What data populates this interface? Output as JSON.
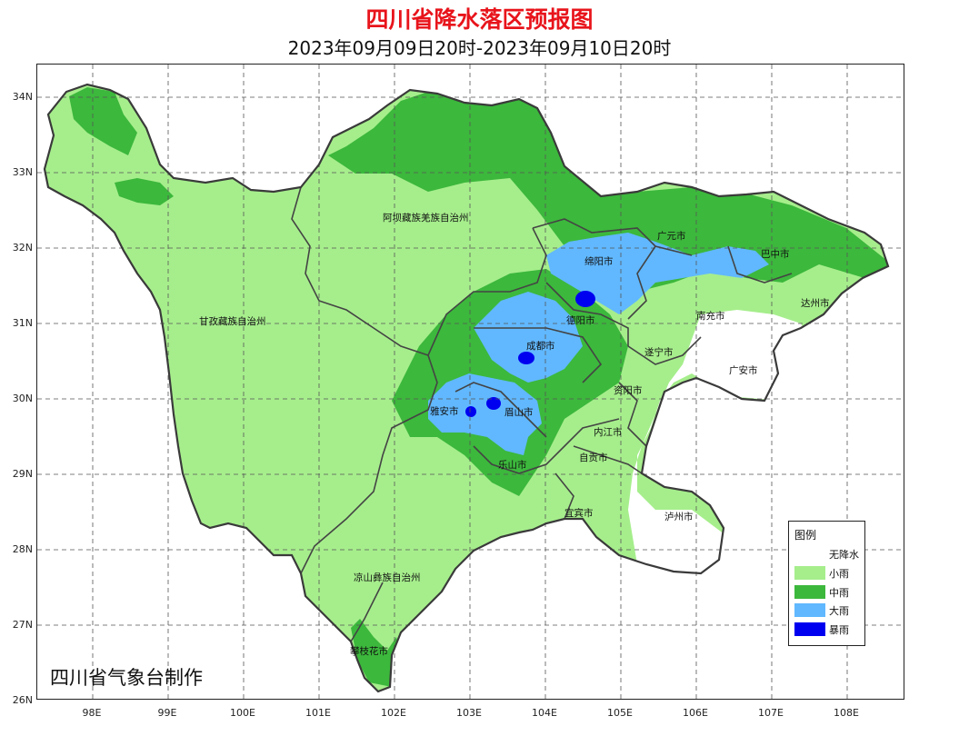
{
  "header": {
    "title": "四川省降水落区预报图",
    "subtitle": "2023年09月09日20时-2023年09月10日20时"
  },
  "axes": {
    "lat_labels": [
      "34N",
      "33N",
      "32N",
      "31N",
      "30N",
      "29N",
      "28N",
      "27N",
      "26N"
    ],
    "lon_labels": [
      "98E",
      "99E",
      "100E",
      "101E",
      "102E",
      "103E",
      "104E",
      "105E",
      "106E",
      "107E",
      "108E"
    ]
  },
  "regions": {
    "aba": "阿坝藏族羌族自治州",
    "ganzi": "甘孜藏族自治州",
    "liangshan": "凉山彝族自治州",
    "guangyuan": "广元市",
    "bazhong": "巴中市",
    "mianyang": "绵阳市",
    "dazhou": "达州市",
    "deyang": "德阳市",
    "nanchong": "南充市",
    "chengdu": "成都市",
    "suining": "遂宁市",
    "guangan": "广安市",
    "ziyang": "资阳市",
    "yaan": "雅安市",
    "meishan": "眉山市",
    "neijiang": "内江市",
    "zigong": "自贡市",
    "leshan": "乐山市",
    "yibin": "宜宾市",
    "luzhou": "泸州市",
    "panzhihua": "攀枝花市"
  },
  "credit": "四川省气象台制作",
  "legend": {
    "title": "图例",
    "items": [
      {
        "label": "无降水",
        "color": "#ffffff"
      },
      {
        "label": "小雨",
        "color": "#a6ee8c"
      },
      {
        "label": "中雨",
        "color": "#3cb83c"
      },
      {
        "label": "大雨",
        "color": "#61b8ff"
      },
      {
        "label": "暴雨",
        "color": "#0000f0"
      }
    ]
  }
}
